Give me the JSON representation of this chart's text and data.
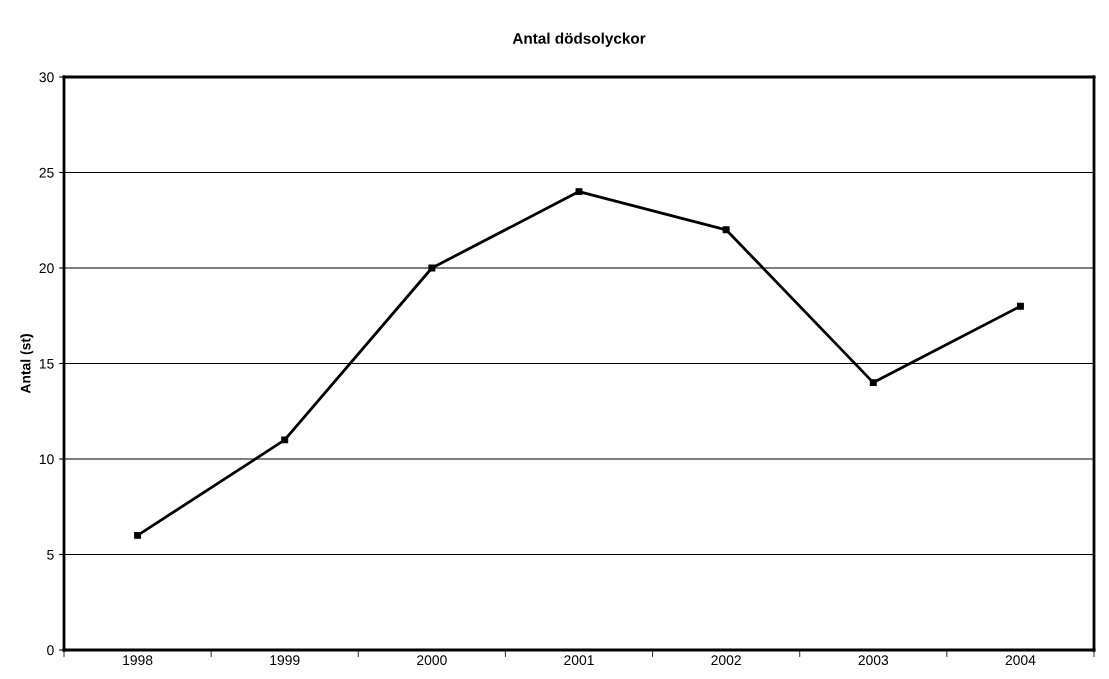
{
  "chart_data": {
    "type": "line",
    "title": "Antal dödsolyckor",
    "ylabel": "Antal (st)",
    "categories": [
      "1998",
      "1999",
      "2000",
      "2001",
      "2002",
      "2003",
      "2004"
    ],
    "series": [
      {
        "color": "#000000",
        "values": [
          6,
          11,
          20,
          24,
          22,
          14,
          18
        ]
      }
    ],
    "ylim": [
      0,
      30
    ],
    "yticks": [
      0,
      5,
      10,
      15,
      20,
      25,
      30
    ],
    "grid": "y",
    "marker": "square",
    "line_style": "solid"
  }
}
